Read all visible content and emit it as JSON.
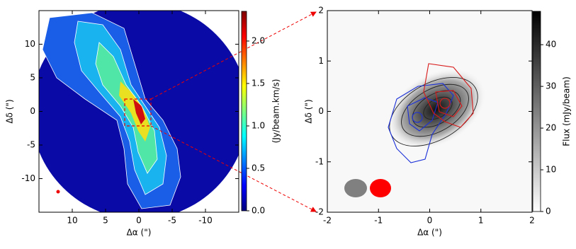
{
  "chart_data": [
    {
      "type": "image",
      "colormap": "jet",
      "xlabel": "Δα (\")",
      "ylabel": "Δδ (\")",
      "colorbar_label": "(Jy/beam.km/s)",
      "xlim": [
        15,
        -15
      ],
      "ylim": [
        -15,
        15
      ],
      "xticks": [
        -10,
        -5,
        0,
        5,
        10
      ],
      "yticks": [
        -10,
        -5,
        0,
        5,
        10
      ],
      "clim": [
        0,
        2.35
      ],
      "cticks": [
        {
          "value": 0,
          "label": "0.0"
        },
        {
          "value": 0.5,
          "label": "0.5"
        },
        {
          "value": 1,
          "label": "1.0"
        },
        {
          "value": 1.5,
          "label": "1.5"
        },
        {
          "value": 2,
          "label": "2.0"
        }
      ]
    },
    {
      "type": "image",
      "colormap": "gray",
      "xlabel": "Δα (\")",
      "ylabel": "Δδ (\")",
      "colorbar_label": "Flux (mJy/beam)",
      "xlim": [
        -2,
        2
      ],
      "ylim": [
        -2,
        2
      ],
      "xticks": [
        -2,
        -1,
        0,
        1,
        2
      ],
      "yticks": [
        -2,
        -1,
        0,
        1,
        2
      ],
      "clim": [
        0,
        48
      ],
      "cticks": [
        0,
        10,
        20,
        30,
        40
      ]
    }
  ]
}
